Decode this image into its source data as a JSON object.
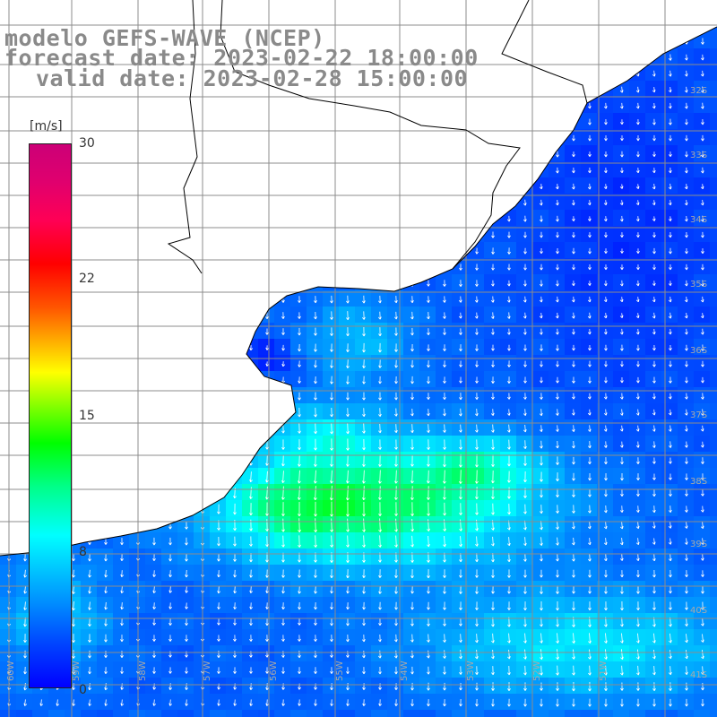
{
  "title": {
    "model": "modelo GEFS-WAVE (NCEP)",
    "forecast": "forecast date: 2023-02-22 18:00:00",
    "valid": "valid date: 2023-02-28 15:00:00"
  },
  "colorbar": {
    "unit": "[m/s]",
    "ticks": [
      "30",
      "22",
      "15",
      "8",
      "0"
    ],
    "tick_values": [
      30,
      22,
      15,
      8,
      0
    ],
    "min": 0,
    "max": 30
  },
  "map_labels": {
    "lat": [
      "32S",
      "33S",
      "34S",
      "35S",
      "36S",
      "37S",
      "38S",
      "39S",
      "40S",
      "41S"
    ],
    "lon": [
      "60W",
      "59W",
      "58W",
      "57W",
      "56W",
      "55W",
      "54W",
      "53W",
      "52W",
      "51W"
    ]
  },
  "colors": {
    "land": "#ffffff",
    "coast": "#000000",
    "grid": "#8c8c8c",
    "arrows": "#ffffff",
    "title_text": "#8a8a8a"
  },
  "field": {
    "variable": "wind speed",
    "units": "m/s",
    "range_shown": [
      0,
      14
    ],
    "predominant_direction": "toward south-southeast"
  }
}
